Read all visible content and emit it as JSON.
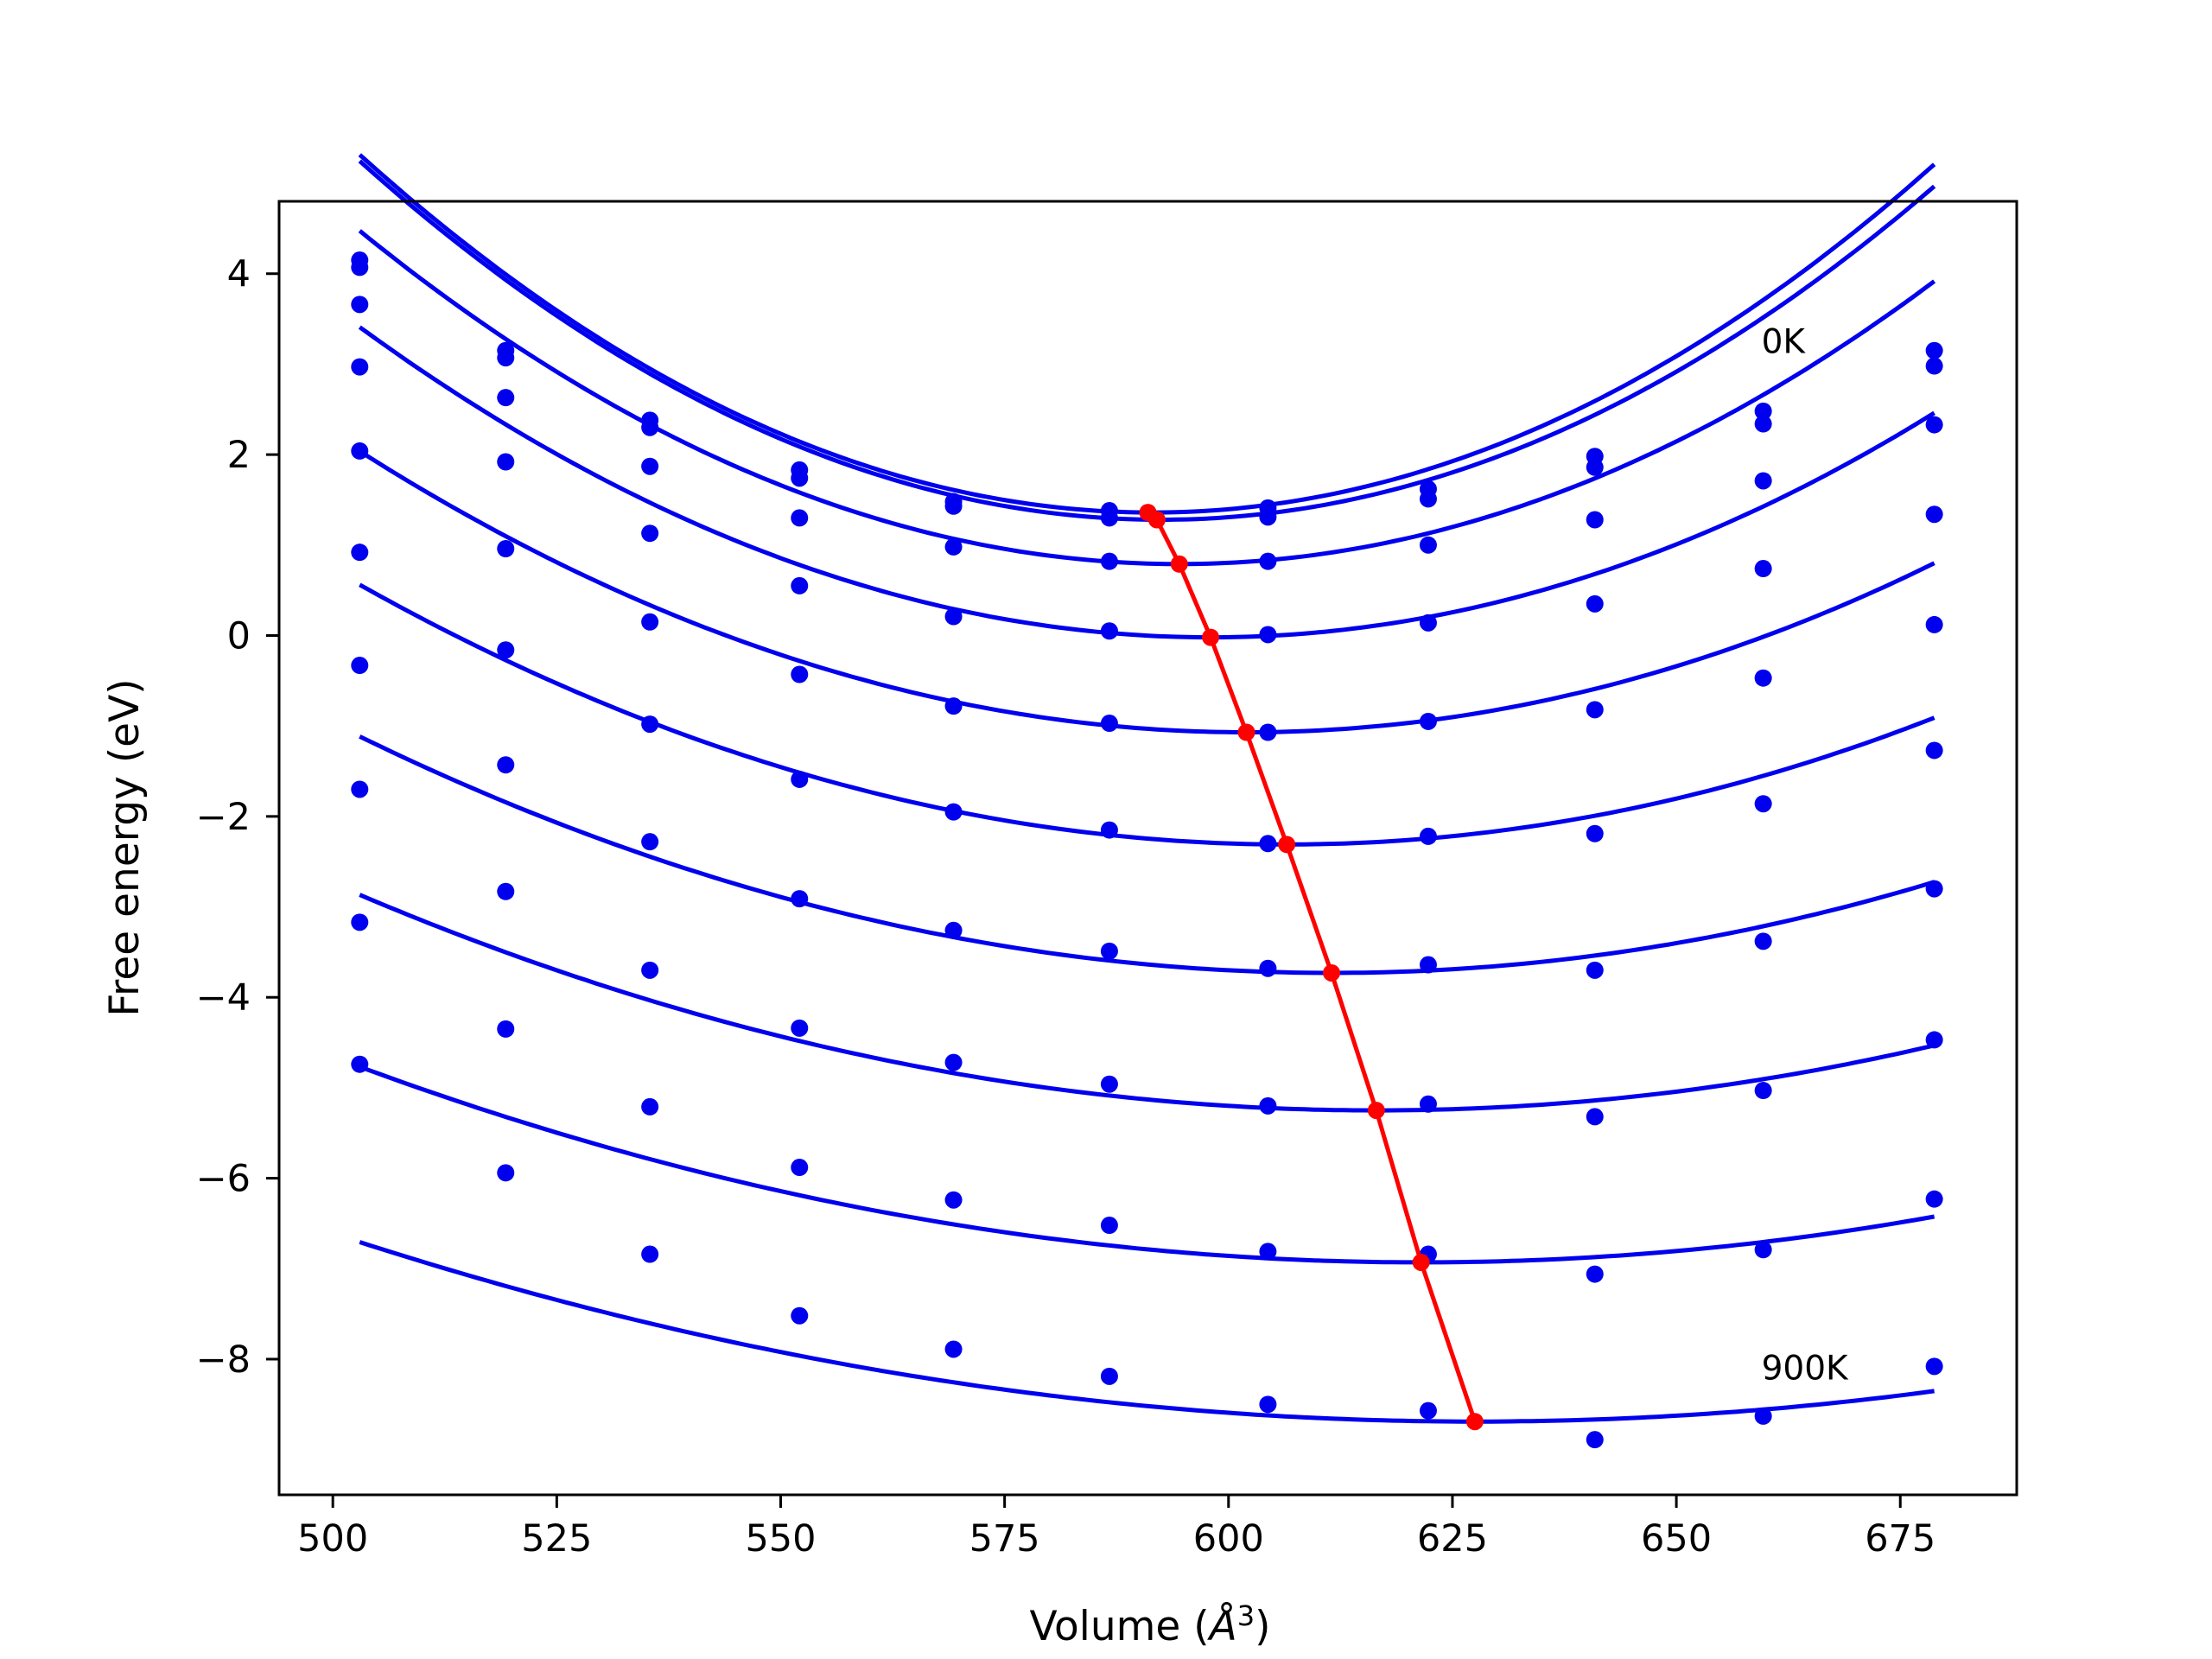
{
  "chart_data": {
    "type": "scatter",
    "xlabel": "Volume (",
    "xlabel_unit": "Å",
    "xlabel_unit_sup": "3",
    "xlabel_close": ")",
    "ylabel": "Free energy (eV)",
    "xlim": [
      494,
      688
    ],
    "ylim": [
      -9.5,
      4.8
    ],
    "xticks": [
      500,
      525,
      550,
      575,
      600,
      625,
      650,
      675
    ],
    "xtick_labels": [
      "500",
      "525",
      "550",
      "575",
      "600",
      "625",
      "650",
      "675"
    ],
    "yticks": [
      4,
      2,
      0,
      -2,
      -4,
      -6,
      -8
    ],
    "ytick_labels": [
      "4",
      "2",
      "0",
      "−2",
      "−4",
      "−6",
      "−8"
    ],
    "grid": false,
    "annotations": [
      {
        "text": "0K",
        "x": 659.5,
        "y": 3.25
      },
      {
        "text": "900K",
        "x": 659.5,
        "y": -8.1
      }
    ],
    "x": [
      503,
      519.3,
      535.4,
      552.1,
      569.3,
      586.7,
      604.4,
      622.3,
      640.9,
      659.7,
      678.8
    ],
    "series": [
      {
        "values": [
          4.15,
          3.15,
          2.38,
          1.83,
          1.48,
          1.38,
          1.41,
          1.62,
          1.98,
          2.48,
          3.15
        ],
        "fit": [
          0.000505,
          591.5,
          1.36
        ],
        "color": "#0000ee"
      },
      {
        "values": [
          4.07,
          3.07,
          2.3,
          1.74,
          1.43,
          1.3,
          1.31,
          1.51,
          1.86,
          2.34,
          2.98
        ],
        "fit": [
          0.000495,
          592.5,
          1.28
        ],
        "color": "#0000ee"
      },
      {
        "values": [
          3.66,
          2.63,
          1.87,
          1.3,
          0.98,
          0.82,
          0.82,
          1.0,
          1.28,
          1.71,
          2.33
        ],
        "fit": [
          0.00044,
          594.5,
          0.79
        ],
        "color": "#0000ee"
      },
      {
        "values": [
          2.97,
          1.92,
          1.13,
          0.55,
          0.21,
          0.05,
          0.01,
          0.14,
          0.35,
          0.74,
          1.34
        ],
        "fit": [
          0.00038,
          598.0,
          -0.02
        ],
        "color": "#0000ee"
      },
      {
        "values": [
          2.04,
          0.96,
          0.15,
          -0.43,
          -0.78,
          -0.97,
          -1.07,
          -0.95,
          -0.82,
          -0.47,
          0.12
        ],
        "fit": [
          0.000317,
          602.0,
          -1.07
        ],
        "color": "#0000ee"
      },
      {
        "values": [
          0.92,
          -0.16,
          -0.98,
          -1.59,
          -1.95,
          -2.15,
          -2.3,
          -2.22,
          -2.19,
          -1.86,
          -1.27
        ],
        "fit": [
          0.000268,
          606.5,
          -2.31
        ],
        "color": "#0000ee"
      },
      {
        "values": [
          -0.33,
          -1.43,
          -2.28,
          -2.91,
          -3.26,
          -3.49,
          -3.68,
          -3.64,
          -3.7,
          -3.38,
          -2.8
        ],
        "fit": [
          0.000222,
          611.5,
          -3.73
        ],
        "color": "#0000ee"
      },
      {
        "values": [
          -1.7,
          -2.83,
          -3.7,
          -4.34,
          -4.72,
          -4.96,
          -5.2,
          -5.18,
          -5.32,
          -5.03,
          -4.47
        ],
        "fit": [
          0.000185,
          616.5,
          -5.25
        ],
        "color": "#0000ee"
      },
      {
        "values": [
          -3.17,
          -4.35,
          -5.21,
          -5.88,
          -6.24,
          -6.52,
          -6.81,
          -6.84,
          -7.06,
          -6.79,
          -6.23
        ],
        "fit": [
          0.000154,
          621.5,
          -6.93
        ],
        "color": "#0000ee"
      },
      {
        "values": [
          -4.74,
          -5.94,
          -6.84,
          -7.52,
          -7.89,
          -8.19,
          -8.5,
          -8.57,
          -8.89,
          -8.63,
          -8.08
        ],
        "fit": [
          0.000128,
          627.5,
          -8.69
        ],
        "color": "#0000ee"
      }
    ],
    "minima": {
      "x": [
        591.0,
        592.0,
        594.5,
        598.0,
        602.0,
        606.5,
        611.5,
        616.5,
        621.5,
        627.5
      ],
      "y": [
        1.36,
        1.28,
        0.79,
        -0.02,
        -1.07,
        -2.31,
        -3.73,
        -5.25,
        -6.93,
        -8.69
      ],
      "color": "#ff0000"
    }
  }
}
